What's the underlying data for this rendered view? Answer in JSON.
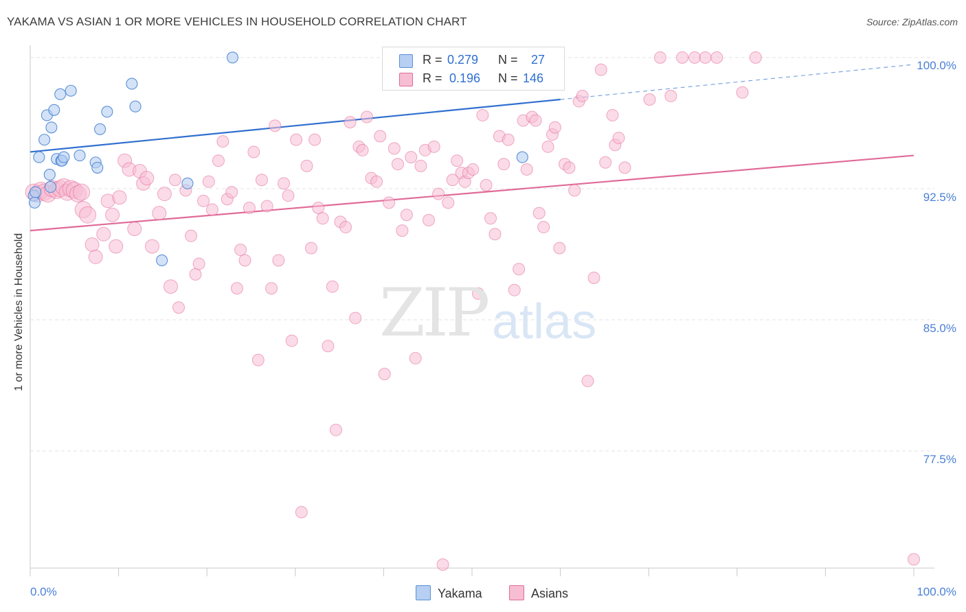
{
  "title": "YAKAMA VS ASIAN 1 OR MORE VEHICLES IN HOUSEHOLD CORRELATION CHART",
  "source": "Source: ZipAtlas.com",
  "watermark": {
    "zip": "ZIP",
    "atlas": "atlas"
  },
  "stats": {
    "yakama": {
      "r_label": "R =",
      "r": "0.279",
      "n_label": "N =",
      "n": "27"
    },
    "asians": {
      "r_label": "R =",
      "r": "0.196",
      "n_label": "N =",
      "n": "146"
    }
  },
  "legend": {
    "yakama": "Yakama",
    "asians": "Asians"
  },
  "colors": {
    "yakama": "#5b8fd6",
    "yakama_fill": "#b6cff2",
    "asians": "#e06a97",
    "asians_fill": "#f7bed3",
    "tick_text": "#4a7fd6",
    "grid": "#e3e3e3"
  },
  "chart_data": {
    "type": "scatter",
    "title": "YAKAMA VS ASIAN 1 OR MORE VEHICLES IN HOUSEHOLD CORRELATION CHART",
    "xlabel": "",
    "ylabel": "1 or more Vehicles in Household",
    "xlim": [
      0,
      100
    ],
    "ylim": [
      70.8,
      100.7
    ],
    "x_tick_labels": [
      "0.0%",
      "100.0%"
    ],
    "y_ticks": [
      77.5,
      85.0,
      92.5,
      100.0
    ],
    "y_tick_labels": [
      "77.5%",
      "85.0%",
      "92.5%",
      "100.0%"
    ],
    "grid": "horizontal dashed",
    "legend_position": "bottom-center",
    "series": [
      {
        "name": "Yakama",
        "r": 0.279,
        "n": 27,
        "trend": {
          "x0": 0,
          "y0": 94.6,
          "x1": 60,
          "y1": 97.6,
          "dashed_to": [
            100,
            99.6
          ]
        },
        "points": [
          [
            1.0,
            94.3
          ],
          [
            1.6,
            95.3
          ],
          [
            1.9,
            96.7
          ],
          [
            2.4,
            96.0
          ],
          [
            2.2,
            93.3
          ],
          [
            2.3,
            92.6
          ],
          [
            2.7,
            97.0
          ],
          [
            3.0,
            94.2
          ],
          [
            3.4,
            97.9
          ],
          [
            3.5,
            94.1
          ],
          [
            3.6,
            94.1
          ],
          [
            3.8,
            94.3
          ],
          [
            4.6,
            98.1
          ],
          [
            5.6,
            94.4
          ],
          [
            7.4,
            94.0
          ],
          [
            7.6,
            93.7
          ],
          [
            7.9,
            95.9
          ],
          [
            8.7,
            96.9
          ],
          [
            11.5,
            98.5
          ],
          [
            11.9,
            97.2
          ],
          [
            14.9,
            88.4
          ],
          [
            17.8,
            92.8
          ],
          [
            22.9,
            100.0
          ],
          [
            55.7,
            94.3
          ],
          [
            0.4,
            92.1
          ],
          [
            0.5,
            91.7
          ],
          [
            0.6,
            92.3
          ]
        ]
      },
      {
        "name": "Asians",
        "r": 0.196,
        "n": 146,
        "trend": {
          "x0": 0,
          "y0": 90.1,
          "x1": 100,
          "y1": 94.4
        },
        "points": [
          [
            0.4,
            92.3
          ],
          [
            0.8,
            92.2
          ],
          [
            1.2,
            92.4
          ],
          [
            1.6,
            92.3
          ],
          [
            2.0,
            92.2
          ],
          [
            2.5,
            92.5
          ],
          [
            3.0,
            92.4
          ],
          [
            3.4,
            92.5
          ],
          [
            3.8,
            92.6
          ],
          [
            4.2,
            92.3
          ],
          [
            4.6,
            92.5
          ],
          [
            5.0,
            92.4
          ],
          [
            5.4,
            92.2
          ],
          [
            5.8,
            92.3
          ],
          [
            6.0,
            91.3
          ],
          [
            6.5,
            91.0
          ],
          [
            7.0,
            89.3
          ],
          [
            7.4,
            88.6
          ],
          [
            8.3,
            89.9
          ],
          [
            8.8,
            91.8
          ],
          [
            9.3,
            91.0
          ],
          [
            9.7,
            89.2
          ],
          [
            10.1,
            92.0
          ],
          [
            10.7,
            94.1
          ],
          [
            11.2,
            93.6
          ],
          [
            11.8,
            90.2
          ],
          [
            12.4,
            93.5
          ],
          [
            12.8,
            92.8
          ],
          [
            13.2,
            93.1
          ],
          [
            13.8,
            89.2
          ],
          [
            14.6,
            91.1
          ],
          [
            15.2,
            92.2
          ],
          [
            15.9,
            86.9
          ],
          [
            16.4,
            93.0
          ],
          [
            16.8,
            85.7
          ],
          [
            17.6,
            92.4
          ],
          [
            18.2,
            89.8
          ],
          [
            18.7,
            87.6
          ],
          [
            19.1,
            88.2
          ],
          [
            19.6,
            91.8
          ],
          [
            20.2,
            92.9
          ],
          [
            20.6,
            91.3
          ],
          [
            21.3,
            94.1
          ],
          [
            21.8,
            95.2
          ],
          [
            22.3,
            91.9
          ],
          [
            22.8,
            92.3
          ],
          [
            23.4,
            86.8
          ],
          [
            23.8,
            89.0
          ],
          [
            24.3,
            88.4
          ],
          [
            24.8,
            91.4
          ],
          [
            25.3,
            94.6
          ],
          [
            25.8,
            82.7
          ],
          [
            26.2,
            93.0
          ],
          [
            26.8,
            91.5
          ],
          [
            27.3,
            86.8
          ],
          [
            27.7,
            96.1
          ],
          [
            28.1,
            88.4
          ],
          [
            28.7,
            92.8
          ],
          [
            29.2,
            92.1
          ],
          [
            29.6,
            83.8
          ],
          [
            30.1,
            95.3
          ],
          [
            30.7,
            74.0
          ],
          [
            31.3,
            93.8
          ],
          [
            31.8,
            89.1
          ],
          [
            32.2,
            95.3
          ],
          [
            32.6,
            91.4
          ],
          [
            33.1,
            90.8
          ],
          [
            33.7,
            83.5
          ],
          [
            34.2,
            86.9
          ],
          [
            34.6,
            78.7
          ],
          [
            35.1,
            90.6
          ],
          [
            35.7,
            90.3
          ],
          [
            36.2,
            96.3
          ],
          [
            36.8,
            85.1
          ],
          [
            37.2,
            94.9
          ],
          [
            37.6,
            94.7
          ],
          [
            38.1,
            96.6
          ],
          [
            38.6,
            93.1
          ],
          [
            39.2,
            92.9
          ],
          [
            39.6,
            95.5
          ],
          [
            40.1,
            81.9
          ],
          [
            40.6,
            91.7
          ],
          [
            41.2,
            94.8
          ],
          [
            41.6,
            93.9
          ],
          [
            42.1,
            90.1
          ],
          [
            42.6,
            91.0
          ],
          [
            43.1,
            94.3
          ],
          [
            43.6,
            82.8
          ],
          [
            44.2,
            93.8
          ],
          [
            44.7,
            94.7
          ],
          [
            45.1,
            90.7
          ],
          [
            45.7,
            94.9
          ],
          [
            46.2,
            92.2
          ],
          [
            46.7,
            71.0
          ],
          [
            47.3,
            91.7
          ],
          [
            47.8,
            93.0
          ],
          [
            48.3,
            94.1
          ],
          [
            48.8,
            93.4
          ],
          [
            49.2,
            92.9
          ],
          [
            49.6,
            93.4
          ],
          [
            50.1,
            93.6
          ],
          [
            50.7,
            86.5
          ],
          [
            51.2,
            96.7
          ],
          [
            51.6,
            92.7
          ],
          [
            52.1,
            90.8
          ],
          [
            52.6,
            89.9
          ],
          [
            53.1,
            95.5
          ],
          [
            53.6,
            93.9
          ],
          [
            54.1,
            95.3
          ],
          [
            54.8,
            86.7
          ],
          [
            55.3,
            87.9
          ],
          [
            55.8,
            96.4
          ],
          [
            56.2,
            93.6
          ],
          [
            56.8,
            96.6
          ],
          [
            57.2,
            96.4
          ],
          [
            57.6,
            91.1
          ],
          [
            58.1,
            90.3
          ],
          [
            58.6,
            94.9
          ],
          [
            59.1,
            95.6
          ],
          [
            59.4,
            96.0
          ],
          [
            59.9,
            89.1
          ],
          [
            60.5,
            93.9
          ],
          [
            61.0,
            93.7
          ],
          [
            61.6,
            92.4
          ],
          [
            62.1,
            97.5
          ],
          [
            62.5,
            97.8
          ],
          [
            63.1,
            81.5
          ],
          [
            63.8,
            87.4
          ],
          [
            64.6,
            99.3
          ],
          [
            65.1,
            94.0
          ],
          [
            65.9,
            96.7
          ],
          [
            66.2,
            95.0
          ],
          [
            66.6,
            95.4
          ],
          [
            67.3,
            93.7
          ],
          [
            70.1,
            97.6
          ],
          [
            71.3,
            100.0
          ],
          [
            72.5,
            97.8
          ],
          [
            73.8,
            100.0
          ],
          [
            75.2,
            100.0
          ],
          [
            76.4,
            100.0
          ],
          [
            77.7,
            100.0
          ],
          [
            80.6,
            98.0
          ],
          [
            82.1,
            100.0
          ],
          [
            100.0,
            71.3
          ]
        ]
      }
    ]
  }
}
